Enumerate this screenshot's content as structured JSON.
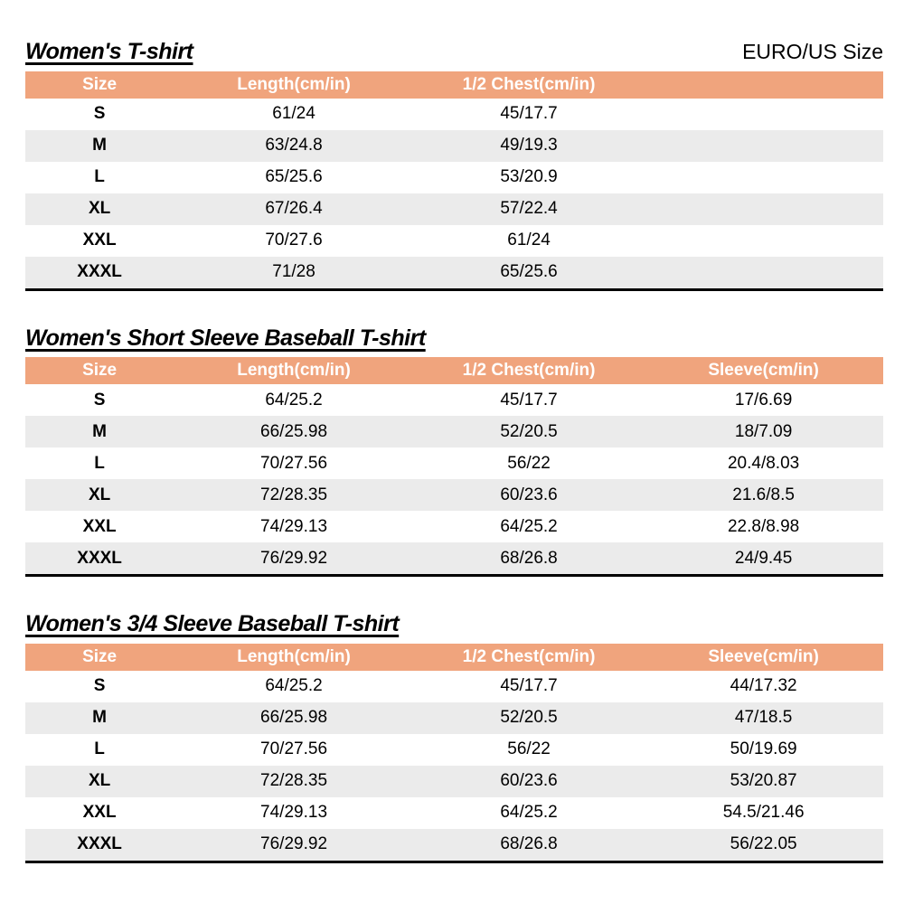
{
  "page": {
    "size_standard_label": "EURO/US Size",
    "colors": {
      "header_bg": "#F0A47D",
      "header_text": "#FFFFFF",
      "row_alt_bg": "#EBEBEB",
      "table_bottom_border": "#000000"
    }
  },
  "tables": [
    {
      "title": "Women's T-shirt",
      "columns": [
        "Size",
        "Length(cm/in)",
        "1/2 Chest(cm/in)",
        ""
      ],
      "rows": [
        [
          "S",
          "61/24",
          "45/17.7",
          ""
        ],
        [
          "M",
          "63/24.8",
          "49/19.3",
          ""
        ],
        [
          "L",
          "65/25.6",
          "53/20.9",
          ""
        ],
        [
          "XL",
          "67/26.4",
          "57/22.4",
          ""
        ],
        [
          "XXL",
          "70/27.6",
          "61/24",
          ""
        ],
        [
          "XXXL",
          "71/28",
          "65/25.6",
          ""
        ]
      ]
    },
    {
      "title": "Women's Short Sleeve Baseball T-shirt",
      "columns": [
        "Size",
        "Length(cm/in)",
        "1/2 Chest(cm/in)",
        "Sleeve(cm/in)"
      ],
      "rows": [
        [
          "S",
          "64/25.2",
          "45/17.7",
          "17/6.69"
        ],
        [
          "M",
          "66/25.98",
          "52/20.5",
          "18/7.09"
        ],
        [
          "L",
          "70/27.56",
          "56/22",
          "20.4/8.03"
        ],
        [
          "XL",
          "72/28.35",
          "60/23.6",
          "21.6/8.5"
        ],
        [
          "XXL",
          "74/29.13",
          "64/25.2",
          "22.8/8.98"
        ],
        [
          "XXXL",
          "76/29.92",
          "68/26.8",
          "24/9.45"
        ]
      ]
    },
    {
      "title": "Women's 3/4 Sleeve Baseball T-shirt",
      "columns": [
        "Size",
        "Length(cm/in)",
        "1/2 Chest(cm/in)",
        "Sleeve(cm/in)"
      ],
      "rows": [
        [
          "S",
          "64/25.2",
          "45/17.7",
          "44/17.32"
        ],
        [
          "M",
          "66/25.98",
          "52/20.5",
          "47/18.5"
        ],
        [
          "L",
          "70/27.56",
          "56/22",
          "50/19.69"
        ],
        [
          "XL",
          "72/28.35",
          "60/23.6",
          "53/20.87"
        ],
        [
          "XXL",
          "74/29.13",
          "64/25.2",
          "54.5/21.46"
        ],
        [
          "XXXL",
          "76/29.92",
          "68/26.8",
          "56/22.05"
        ]
      ]
    }
  ]
}
